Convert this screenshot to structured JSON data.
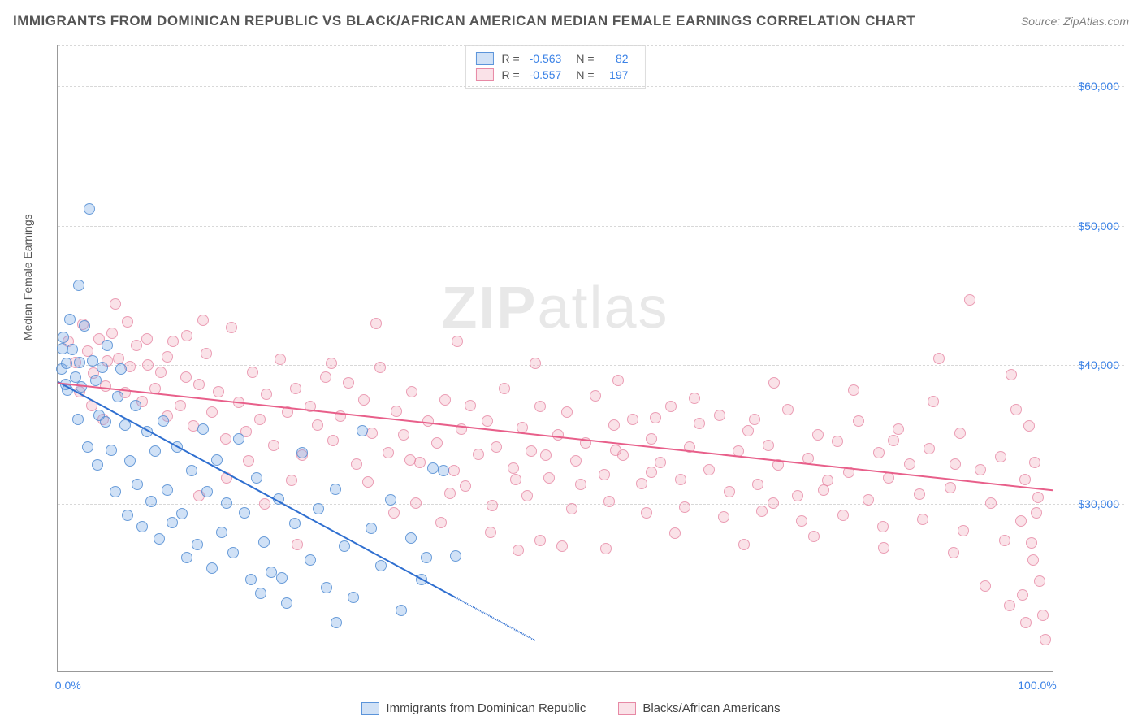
{
  "header": {
    "title": "IMMIGRANTS FROM DOMINICAN REPUBLIC VS BLACK/AFRICAN AMERICAN MEDIAN FEMALE EARNINGS CORRELATION CHART",
    "source": "Source: ZipAtlas.com"
  },
  "watermark": {
    "prefix": "ZIP",
    "suffix": "atlas"
  },
  "chart": {
    "type": "scatter",
    "ylabel": "Median Female Earnings",
    "xlim": [
      0,
      100
    ],
    "ylim": [
      18000,
      63000
    ],
    "xtick_positions": [
      0,
      10,
      20,
      30,
      40,
      50,
      60,
      70,
      80,
      90,
      100
    ],
    "xtick_labels": {
      "0": "0.0%",
      "100": "100.0%"
    },
    "ytick_positions": [
      30000,
      40000,
      50000,
      60000
    ],
    "ytick_labels": [
      "$30,000",
      "$40,000",
      "$50,000",
      "$60,000"
    ],
    "background_color": "#ffffff",
    "grid_color": "#d8d8d8",
    "axis_color": "#999999",
    "marker_size": 14,
    "series": {
      "blue": {
        "label": "Immigrants from Dominican Republic",
        "fill": "rgba(120,170,230,0.35)",
        "stroke": "#5b94da",
        "R": "-0.563",
        "N": "82",
        "trend": {
          "x1": 0,
          "y1": 38800,
          "x2": 48,
          "y2": 20200,
          "solid_until_x": 40,
          "color": "#2f6fd0",
          "width": 2
        },
        "points": [
          [
            0.4,
            39700
          ],
          [
            0.5,
            41200
          ],
          [
            0.6,
            42000
          ],
          [
            0.8,
            38600
          ],
          [
            0.9,
            40100
          ],
          [
            1.0,
            38200
          ],
          [
            1.2,
            43300
          ],
          [
            1.5,
            41100
          ],
          [
            1.8,
            39100
          ],
          [
            2.0,
            36100
          ],
          [
            2.1,
            45700
          ],
          [
            2.2,
            40200
          ],
          [
            2.4,
            38400
          ],
          [
            2.7,
            42800
          ],
          [
            3.0,
            34100
          ],
          [
            3.2,
            51200
          ],
          [
            3.5,
            40300
          ],
          [
            3.8,
            38900
          ],
          [
            4.0,
            32800
          ],
          [
            4.2,
            36400
          ],
          [
            4.5,
            39800
          ],
          [
            4.8,
            35900
          ],
          [
            5.0,
            41400
          ],
          [
            5.4,
            33900
          ],
          [
            5.8,
            30900
          ],
          [
            6.0,
            37700
          ],
          [
            6.4,
            39700
          ],
          [
            6.8,
            35700
          ],
          [
            7.0,
            29200
          ],
          [
            7.3,
            33100
          ],
          [
            7.8,
            37100
          ],
          [
            8.0,
            31400
          ],
          [
            8.5,
            28400
          ],
          [
            9.0,
            35200
          ],
          [
            9.4,
            30200
          ],
          [
            9.8,
            33800
          ],
          [
            10.2,
            27500
          ],
          [
            10.6,
            36000
          ],
          [
            11.0,
            31000
          ],
          [
            11.5,
            28700
          ],
          [
            12.0,
            34100
          ],
          [
            12.5,
            29300
          ],
          [
            13.0,
            26200
          ],
          [
            13.5,
            32400
          ],
          [
            14.0,
            27100
          ],
          [
            14.6,
            35400
          ],
          [
            15.0,
            30900
          ],
          [
            15.5,
            25400
          ],
          [
            16.0,
            33200
          ],
          [
            16.5,
            28000
          ],
          [
            17.0,
            30100
          ],
          [
            17.6,
            26500
          ],
          [
            18.2,
            34700
          ],
          [
            18.8,
            29400
          ],
          [
            19.4,
            24600
          ],
          [
            20.0,
            31900
          ],
          [
            20.7,
            27300
          ],
          [
            21.5,
            25100
          ],
          [
            22.2,
            30400
          ],
          [
            23.0,
            22900
          ],
          [
            23.8,
            28600
          ],
          [
            24.6,
            33700
          ],
          [
            25.4,
            26000
          ],
          [
            26.2,
            29700
          ],
          [
            27.0,
            24000
          ],
          [
            27.9,
            31100
          ],
          [
            28.8,
            27000
          ],
          [
            29.7,
            23300
          ],
          [
            30.6,
            35300
          ],
          [
            31.5,
            28300
          ],
          [
            32.5,
            25600
          ],
          [
            33.5,
            30300
          ],
          [
            34.5,
            22400
          ],
          [
            35.5,
            27600
          ],
          [
            36.6,
            24600
          ],
          [
            37.7,
            32600
          ],
          [
            38.8,
            32400
          ],
          [
            40.0,
            26300
          ],
          [
            28.0,
            21500
          ],
          [
            20.4,
            23600
          ],
          [
            22.5,
            24700
          ],
          [
            37.1,
            26200
          ]
        ]
      },
      "pink": {
        "label": "Blacks/African Americans",
        "fill": "rgba(240,160,180,0.30)",
        "stroke": "#e789a5",
        "R": "-0.557",
        "N": "197",
        "trend": {
          "x1": 0,
          "y1": 38700,
          "x2": 100,
          "y2": 31000,
          "solid_until_x": 100,
          "color": "#e85f8a",
          "width": 2
        },
        "points": [
          [
            1.1,
            41700
          ],
          [
            1.8,
            40200
          ],
          [
            2.5,
            42900
          ],
          [
            3.0,
            41000
          ],
          [
            3.6,
            39400
          ],
          [
            4.2,
            41900
          ],
          [
            4.8,
            38500
          ],
          [
            5.5,
            42300
          ],
          [
            6.1,
            40500
          ],
          [
            6.8,
            38000
          ],
          [
            7.3,
            39900
          ],
          [
            7.9,
            41400
          ],
          [
            8.5,
            37400
          ],
          [
            9.1,
            40000
          ],
          [
            9.8,
            38300
          ],
          [
            10.4,
            39500
          ],
          [
            11.0,
            36300
          ],
          [
            11.6,
            41700
          ],
          [
            12.3,
            37100
          ],
          [
            12.9,
            39100
          ],
          [
            13.6,
            35600
          ],
          [
            14.2,
            38600
          ],
          [
            14.9,
            40800
          ],
          [
            15.5,
            36600
          ],
          [
            16.2,
            38100
          ],
          [
            16.9,
            34700
          ],
          [
            17.5,
            42700
          ],
          [
            18.2,
            37300
          ],
          [
            18.9,
            35200
          ],
          [
            19.6,
            39500
          ],
          [
            20.3,
            36100
          ],
          [
            21.0,
            37900
          ],
          [
            21.7,
            34200
          ],
          [
            22.4,
            40400
          ],
          [
            23.1,
            36600
          ],
          [
            23.9,
            38300
          ],
          [
            24.6,
            33500
          ],
          [
            25.4,
            37000
          ],
          [
            26.1,
            35700
          ],
          [
            26.9,
            39100
          ],
          [
            27.7,
            34600
          ],
          [
            28.4,
            36300
          ],
          [
            29.2,
            38700
          ],
          [
            30.0,
            32900
          ],
          [
            30.8,
            37500
          ],
          [
            31.6,
            35100
          ],
          [
            32.4,
            39800
          ],
          [
            33.2,
            33700
          ],
          [
            34.0,
            36700
          ],
          [
            34.8,
            35000
          ],
          [
            35.6,
            38100
          ],
          [
            36.4,
            33000
          ],
          [
            37.2,
            36000
          ],
          [
            38.1,
            34400
          ],
          [
            38.9,
            37500
          ],
          [
            39.8,
            32400
          ],
          [
            40.6,
            35400
          ],
          [
            41.5,
            37100
          ],
          [
            42.3,
            33600
          ],
          [
            43.2,
            36000
          ],
          [
            44.1,
            34100
          ],
          [
            44.9,
            38300
          ],
          [
            45.8,
            32600
          ],
          [
            46.7,
            35500
          ],
          [
            47.6,
            33800
          ],
          [
            48.5,
            37000
          ],
          [
            49.4,
            31900
          ],
          [
            50.3,
            35000
          ],
          [
            51.2,
            36600
          ],
          [
            52.1,
            33100
          ],
          [
            53.1,
            34400
          ],
          [
            54.0,
            37800
          ],
          [
            54.9,
            32100
          ],
          [
            55.9,
            35700
          ],
          [
            56.8,
            33500
          ],
          [
            57.8,
            36100
          ],
          [
            58.7,
            31500
          ],
          [
            59.7,
            34700
          ],
          [
            60.6,
            33000
          ],
          [
            61.6,
            37000
          ],
          [
            62.6,
            31800
          ],
          [
            63.5,
            34100
          ],
          [
            64.5,
            35800
          ],
          [
            65.5,
            32500
          ],
          [
            66.5,
            36400
          ],
          [
            67.5,
            30900
          ],
          [
            68.4,
            33800
          ],
          [
            69.4,
            35300
          ],
          [
            70.4,
            31400
          ],
          [
            71.4,
            34200
          ],
          [
            72.4,
            32800
          ],
          [
            73.4,
            36800
          ],
          [
            74.4,
            30600
          ],
          [
            75.4,
            33300
          ],
          [
            76.4,
            35000
          ],
          [
            77.4,
            31700
          ],
          [
            78.4,
            34500
          ],
          [
            79.5,
            32300
          ],
          [
            80.5,
            36000
          ],
          [
            81.5,
            30300
          ],
          [
            82.5,
            33700
          ],
          [
            83.5,
            31900
          ],
          [
            84.5,
            35400
          ],
          [
            85.6,
            32900
          ],
          [
            86.6,
            30700
          ],
          [
            87.6,
            34000
          ],
          [
            88.6,
            40500
          ],
          [
            89.7,
            31200
          ],
          [
            90.7,
            35100
          ],
          [
            91.7,
            44700
          ],
          [
            92.7,
            32500
          ],
          [
            93.8,
            30100
          ],
          [
            94.8,
            33400
          ],
          [
            95.8,
            39300
          ],
          [
            96.8,
            28800
          ],
          [
            97.2,
            31800
          ],
          [
            97.6,
            35600
          ],
          [
            97.9,
            27200
          ],
          [
            98.2,
            33000
          ],
          [
            98.5,
            30500
          ],
          [
            14.6,
            43200
          ],
          [
            19.2,
            33100
          ],
          [
            23.5,
            31700
          ],
          [
            27.5,
            40100
          ],
          [
            31.2,
            31600
          ],
          [
            35.4,
            33200
          ],
          [
            39.4,
            30800
          ],
          [
            43.7,
            29900
          ],
          [
            47.2,
            30600
          ],
          [
            51.7,
            29700
          ],
          [
            55.4,
            30200
          ],
          [
            59.2,
            29400
          ],
          [
            63.0,
            29800
          ],
          [
            66.9,
            29100
          ],
          [
            70.8,
            29500
          ],
          [
            74.8,
            28800
          ],
          [
            78.9,
            29200
          ],
          [
            82.9,
            28400
          ],
          [
            86.9,
            28900
          ],
          [
            91.0,
            28100
          ],
          [
            93.2,
            24100
          ],
          [
            95.2,
            27400
          ],
          [
            97.0,
            23500
          ],
          [
            98.0,
            26000
          ],
          [
            98.4,
            29400
          ],
          [
            98.7,
            24500
          ],
          [
            99.0,
            22000
          ],
          [
            96.3,
            36800
          ],
          [
            88.0,
            37400
          ],
          [
            80.0,
            38200
          ],
          [
            72.0,
            38700
          ],
          [
            64.0,
            37600
          ],
          [
            56.3,
            38900
          ],
          [
            48.0,
            40100
          ],
          [
            40.2,
            41700
          ],
          [
            32.0,
            43000
          ],
          [
            24.1,
            27100
          ],
          [
            50.7,
            27000
          ],
          [
            60.1,
            36200
          ],
          [
            70.0,
            36100
          ],
          [
            46.3,
            26700
          ],
          [
            77.0,
            31000
          ],
          [
            84.0,
            34600
          ],
          [
            90.2,
            32900
          ],
          [
            55.1,
            26800
          ],
          [
            62.0,
            27900
          ],
          [
            69.0,
            27100
          ],
          [
            76.0,
            27700
          ],
          [
            83.0,
            26900
          ],
          [
            90.0,
            26500
          ],
          [
            33.8,
            29400
          ],
          [
            36.0,
            30100
          ],
          [
            38.5,
            28700
          ],
          [
            41.0,
            31300
          ],
          [
            43.5,
            28000
          ],
          [
            46.0,
            31800
          ],
          [
            48.5,
            27400
          ],
          [
            14.2,
            30600
          ],
          [
            17.0,
            31900
          ],
          [
            20.8,
            30000
          ],
          [
            5.0,
            40300
          ],
          [
            7.0,
            43100
          ],
          [
            9.0,
            41900
          ],
          [
            11.0,
            40600
          ],
          [
            13.0,
            42100
          ],
          [
            2.2,
            38100
          ],
          [
            3.4,
            37100
          ],
          [
            4.6,
            36100
          ],
          [
            5.8,
            44400
          ],
          [
            99.3,
            20300
          ],
          [
            97.3,
            21500
          ],
          [
            95.7,
            22700
          ],
          [
            49.1,
            33500
          ],
          [
            52.6,
            31400
          ],
          [
            56.1,
            33900
          ],
          [
            59.7,
            32300
          ],
          [
            71.9,
            30100
          ]
        ]
      }
    }
  },
  "legend": {
    "items": [
      {
        "key": "blue",
        "label": "Immigrants from Dominican Republic"
      },
      {
        "key": "pink",
        "label": "Blacks/African Americans"
      }
    ]
  }
}
